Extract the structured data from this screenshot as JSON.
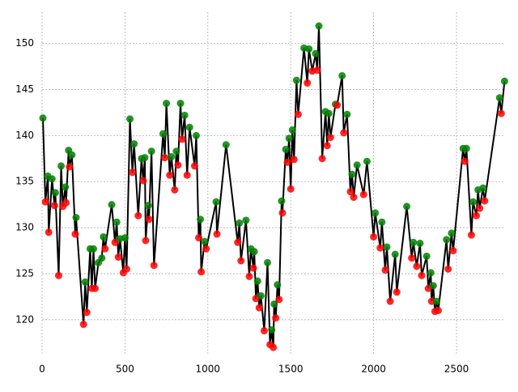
{
  "chart_data": {
    "type": "line",
    "x": [
      5,
      20,
      35,
      40,
      60,
      75,
      80,
      100,
      115,
      125,
      140,
      145,
      160,
      165,
      180,
      200,
      205,
      250,
      260,
      270,
      290,
      300,
      310,
      320,
      340,
      360,
      370,
      380,
      420,
      440,
      450,
      460,
      470,
      490,
      500,
      510,
      530,
      545,
      555,
      580,
      600,
      610,
      620,
      625,
      640,
      645,
      660,
      675,
      730,
      740,
      750,
      770,
      780,
      800,
      810,
      820,
      835,
      845,
      860,
      875,
      890,
      920,
      930,
      945,
      955,
      960,
      980,
      990,
      1050,
      1055,
      1110,
      1180,
      1190,
      1200,
      1230,
      1250,
      1260,
      1275,
      1280,
      1290,
      1300,
      1310,
      1320,
      1340,
      1360,
      1375,
      1385,
      1395,
      1400,
      1410,
      1420,
      1430,
      1445,
      1450,
      1470,
      1480,
      1490,
      1500,
      1510,
      1520,
      1535,
      1545,
      1580,
      1600,
      1610,
      1630,
      1650,
      1660,
      1670,
      1690,
      1710,
      1720,
      1730,
      1740,
      1770,
      1780,
      1810,
      1820,
      1840,
      1860,
      1870,
      1880,
      1900,
      1940,
      1960,
      2000,
      2010,
      2040,
      2050,
      2070,
      2080,
      2100,
      2130,
      2140,
      2200,
      2230,
      2240,
      2260,
      2280,
      2290,
      2320,
      2330,
      2345,
      2350,
      2360,
      2370,
      2380,
      2390,
      2440,
      2450,
      2470,
      2480,
      2540,
      2550,
      2560,
      2590,
      2600,
      2620,
      2630,
      2640,
      2660,
      2670,
      2760,
      2770,
      2790
    ],
    "values": [
      141.9,
      132.8,
      135.6,
      129.5,
      135.3,
      132.4,
      133.8,
      124.8,
      136.7,
      132.3,
      134.4,
      132.7,
      138.4,
      136.6,
      137.9,
      129.3,
      131.1,
      119.5,
      124.1,
      120.8,
      127.7,
      123.4,
      127.7,
      123.4,
      126.2,
      126.7,
      129.0,
      127.7,
      132.5,
      128.4,
      130.6,
      126.8,
      128.8,
      125.1,
      128.9,
      125.5,
      141.8,
      136.0,
      139.1,
      131.3,
      137.5,
      135.1,
      137.6,
      128.6,
      132.4,
      130.9,
      138.3,
      125.9,
      140.2,
      137.6,
      143.5,
      135.7,
      137.7,
      134.1,
      138.3,
      136.8,
      143.5,
      139.6,
      142.2,
      135.7,
      140.9,
      136.7,
      140.0,
      128.9,
      130.9,
      125.2,
      128.5,
      127.7,
      132.8,
      129.3,
      139.0,
      128.4,
      130.5,
      126.4,
      130.8,
      124.7,
      127.7,
      125.6,
      127.4,
      122.3,
      124.2,
      121.3,
      122.6,
      118.8,
      126.2,
      117.3,
      118.9,
      117.0,
      121.7,
      120.2,
      123.8,
      122.2,
      132.9,
      131.6,
      138.5,
      137.1,
      139.7,
      134.2,
      140.6,
      137.4,
      146.0,
      142.3,
      149.5,
      145.7,
      149.4,
      147.0,
      148.9,
      147.1,
      151.9,
      137.5,
      142.6,
      138.9,
      142.4,
      139.8,
      143.4,
      143.3,
      146.5,
      140.3,
      142.3,
      133.9,
      135.8,
      133.3,
      136.8,
      133.6,
      137.2,
      129.0,
      131.6,
      127.8,
      130.6,
      125.4,
      127.9,
      122.0,
      127.1,
      123.0,
      132.3,
      126.7,
      128.4,
      125.8,
      128.3,
      124.8,
      126.9,
      123.4,
      125.1,
      122.0,
      123.7,
      120.9,
      122.0,
      121.0,
      128.7,
      125.5,
      129.4,
      127.5,
      138.6,
      137.2,
      138.6,
      129.2,
      132.8,
      131.3,
      134.1,
      132.1,
      134.3,
      132.9,
      144.1,
      142.4,
      145.9
    ],
    "color": "#000000",
    "peak_color": "#008000",
    "trough_color": "#ff0000",
    "xlim": [
      0,
      2793
    ],
    "ylim": [
      116.2,
      153.4
    ],
    "xticks": [
      0,
      500,
      1000,
      1500,
      2000,
      2500
    ],
    "yticks": [
      120,
      125,
      130,
      135,
      140,
      145,
      150
    ],
    "grid": true
  }
}
